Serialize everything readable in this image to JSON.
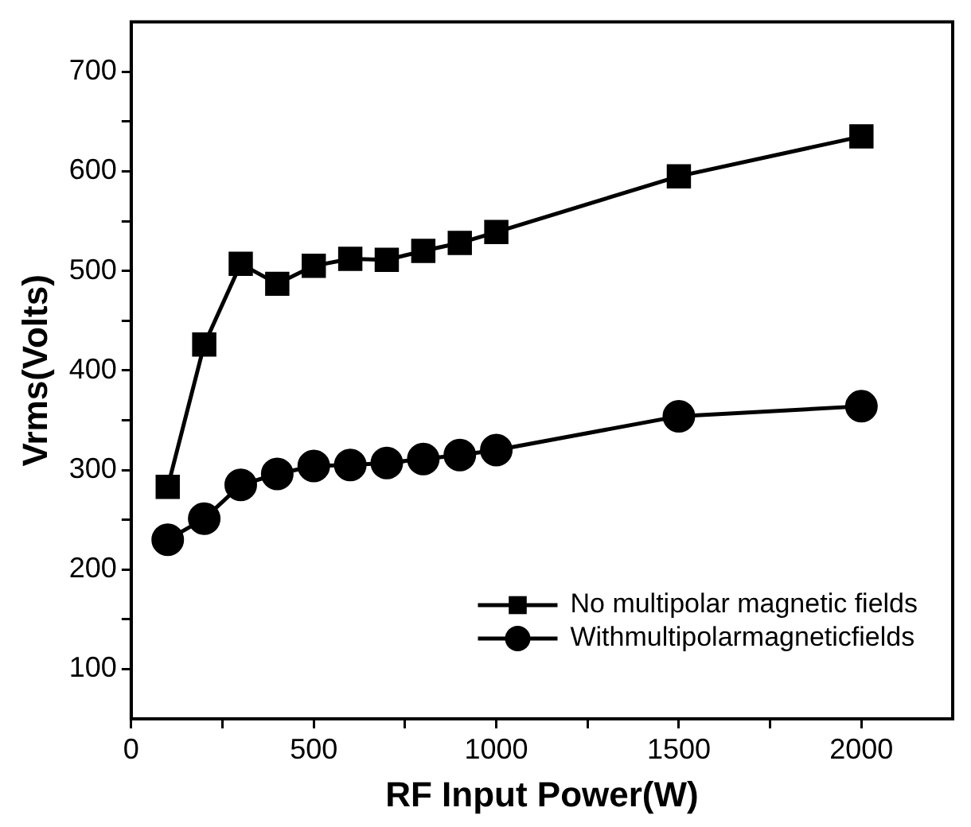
{
  "chart_data": {
    "type": "line",
    "xlabel": "RF Input Power(W)",
    "ylabel": "Vrms(Volts)",
    "x": [
      100,
      200,
      300,
      400,
      500,
      600,
      700,
      800,
      900,
      1000,
      1500,
      2000
    ],
    "series": [
      {
        "name": "No multipolar magnetic fields",
        "color": "#000000",
        "marker": "square",
        "values": [
          283,
          426,
          507,
          487,
          505,
          512,
          511,
          520,
          528,
          539,
          595,
          635
        ]
      },
      {
        "name": "Withmultipolarmagneticfields",
        "color": "#000000",
        "marker": "circle",
        "values": [
          230,
          251,
          285,
          296,
          304,
          305,
          307,
          311,
          315,
          320,
          354,
          364
        ]
      }
    ],
    "xlim": [
      0,
      2250
    ],
    "xticks": [
      0,
      {
        "value": 250,
        "label": null
      },
      500,
      {
        "value": 750,
        "label": null
      },
      1000,
      {
        "value": 1250,
        "label": null
      },
      1500,
      {
        "value": 1750,
        "label": null
      },
      2000
    ],
    "ylim": [
      50,
      750
    ],
    "yticks": [
      100,
      {
        "value": 150,
        "label": null
      },
      200,
      {
        "value": 250,
        "label": null
      },
      300,
      {
        "value": 350,
        "label": null
      },
      400,
      {
        "value": 450,
        "label": null
      },
      500,
      {
        "value": 550,
        "label": null
      },
      600,
      {
        "value": 650,
        "label": null
      },
      700
    ],
    "grid": false,
    "legend": "bottom right",
    "line_style": "solid"
  }
}
